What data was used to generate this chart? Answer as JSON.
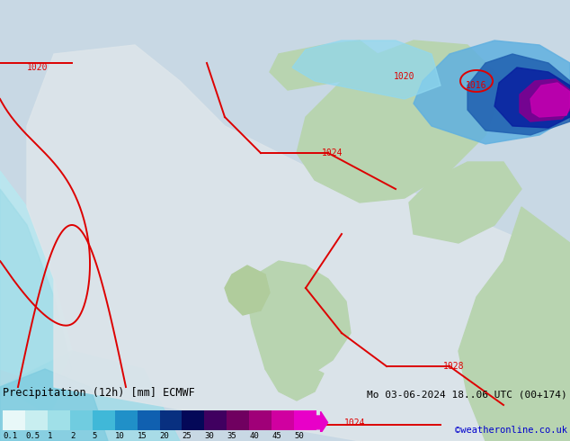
{
  "title_left": "Precipitation (12h) [mm] ECMWF",
  "title_right": "Mo 03-06-2024 18..06 UTC (00+174",
  "credit": "©weatheronline.co.uk",
  "colorbar_labels": [
    "0.1",
    "0.5",
    "1",
    "2",
    "5",
    "10",
    "15",
    "20",
    "25",
    "30",
    "35",
    "40",
    "45",
    "50"
  ],
  "colorbar_colors": [
    "#e8f8f8",
    "#c8eef0",
    "#a0e0e8",
    "#70cce0",
    "#40b8d8",
    "#2090c8",
    "#1060b0",
    "#083080",
    "#040858",
    "#400060",
    "#700060",
    "#a00078",
    "#d000a0",
    "#e800c8"
  ],
  "background_map_color": "#d0d8e0",
  "land_color_light": "#c8dfc8",
  "land_color_dark": "#a8c8a8",
  "sea_color": "#b8d0e0",
  "precip_light_cyan": "#c0e8f0",
  "precip_cyan": "#80d0e8",
  "precip_blue_light": "#60c0e0",
  "isobar_color": "#dd0000",
  "isobar_labels": [
    "1020",
    "1020",
    "1024",
    "1028",
    "1016",
    "1024"
  ],
  "figsize": [
    6.34,
    4.9
  ],
  "dpi": 100
}
